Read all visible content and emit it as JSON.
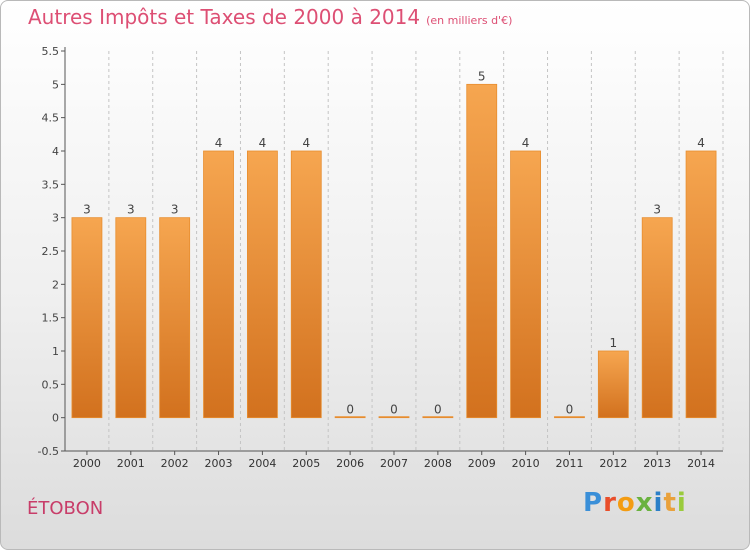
{
  "title": "Autres Impôts et Taxes de 2000 à 2014",
  "subtitle": "(en milliers d'€)",
  "place": "ÉTOBON",
  "brand": {
    "text": "Proxiti",
    "letter_colors": [
      "#3a8fd8",
      "#e94e2a",
      "#f39c12",
      "#6ab23f",
      "#2b7fc8",
      "#e9a13b",
      "#9acb3c"
    ]
  },
  "colors": {
    "bar_top": "#f6a650",
    "bar_bottom": "#d2711e",
    "title": "#dd4f74",
    "axis": "#555555"
  },
  "chart_data": {
    "type": "bar",
    "categories": [
      "2000",
      "2001",
      "2002",
      "2003",
      "2004",
      "2005",
      "2006",
      "2007",
      "2008",
      "2009",
      "2010",
      "2011",
      "2012",
      "2013",
      "2014"
    ],
    "values": [
      3,
      3,
      3,
      4,
      4,
      4,
      0,
      0,
      0,
      5,
      4,
      0,
      1,
      3,
      4
    ],
    "data_labels": [
      "3",
      "3",
      "3",
      "4",
      "4",
      "4",
      "0",
      "0",
      "0",
      "5",
      "4",
      "0",
      "1",
      "3",
      "4"
    ],
    "yticks": [
      "-0.5",
      "0",
      "0.5",
      "1",
      "1.5",
      "2",
      "2.5",
      "3",
      "3.5",
      "4",
      "4.5",
      "5",
      "5.5"
    ],
    "ylim": [
      -0.5,
      5.5
    ],
    "grid": "vertical dashed",
    "legend": "none"
  }
}
